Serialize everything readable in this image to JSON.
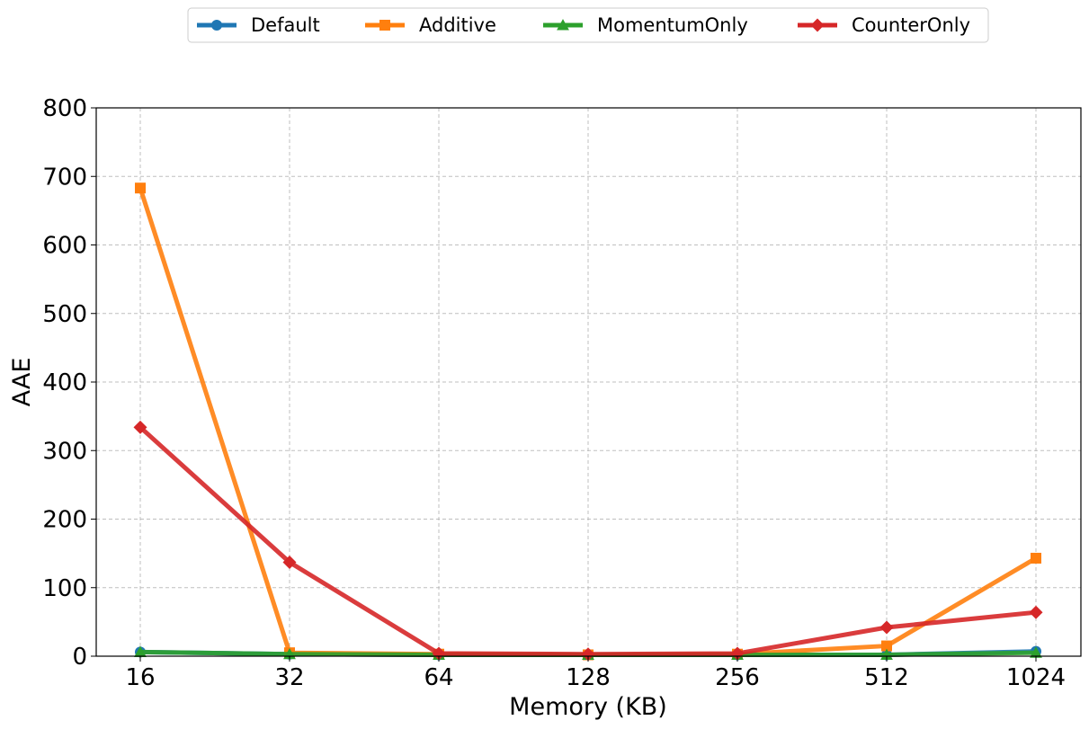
{
  "chart_data": {
    "type": "line",
    "title": "",
    "xlabel": "Memory (KB)",
    "ylabel": "AAE",
    "categories": [
      "16",
      "32",
      "64",
      "128",
      "256",
      "512",
      "1024"
    ],
    "ylim": [
      0,
      800
    ],
    "yticks": [
      0,
      100,
      200,
      300,
      400,
      500,
      600,
      700,
      800
    ],
    "grid": true,
    "legend_position": "top-center",
    "series": [
      {
        "name": "Default",
        "color": "#1f77b4",
        "marker": "circle",
        "values": [
          6,
          3,
          2,
          2,
          2,
          2,
          7
        ]
      },
      {
        "name": "Additive",
        "color": "#ff7f0e",
        "marker": "square",
        "values": [
          683,
          5,
          3,
          2,
          3,
          15,
          143
        ]
      },
      {
        "name": "MomentumOnly",
        "color": "#2ca02c",
        "marker": "triangle",
        "values": [
          6,
          3,
          2,
          2,
          2,
          2,
          5
        ]
      },
      {
        "name": "CounterOnly",
        "color": "#d62728",
        "marker": "diamond",
        "values": [
          334,
          137,
          4,
          3,
          4,
          42,
          64
        ]
      }
    ]
  }
}
